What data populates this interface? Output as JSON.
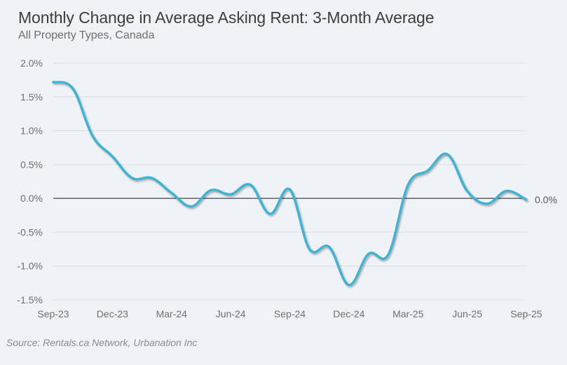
{
  "chart_data": {
    "type": "line",
    "title": "Monthly Change in Average Asking Rent: 3-Month Average",
    "subtitle": "All Property Types, Canada",
    "source": "Source: Rentals.ca Network, Urbanation Inc",
    "xlabel": "",
    "ylabel": "",
    "ylim": [
      -1.5,
      2.0
    ],
    "yticks": [
      2.0,
      1.5,
      1.0,
      0.5,
      0.0,
      -0.5,
      -1.0,
      -1.5
    ],
    "ytick_labels": [
      "2.0%",
      "1.5%",
      "1.0%",
      "0.5%",
      "0.0%",
      "-0.5%",
      "-1.0%",
      "-1.5%"
    ],
    "xtick_labels": [
      "Sep-23",
      "Dec-23",
      "Mar-24",
      "Jun-24",
      "Sep-24",
      "Dec-24",
      "Mar-25",
      "Jun-25",
      "Sep-25"
    ],
    "xtick_every": 3,
    "grid": true,
    "end_label": "0.0%",
    "line_color": "#3fb3d0",
    "series": [
      {
        "name": "Monthly change (3-month average)",
        "x": [
          "Sep-23",
          "Oct-23",
          "Nov-23",
          "Dec-23",
          "Jan-24",
          "Feb-24",
          "Mar-24",
          "Apr-24",
          "May-24",
          "Jun-24",
          "Jul-24",
          "Aug-24",
          "Sep-24",
          "Oct-24",
          "Nov-24",
          "Dec-24",
          "Jan-25",
          "Feb-25",
          "Mar-25",
          "Apr-25",
          "May-25",
          "Jun-25",
          "Jul-25",
          "Aug-25",
          "Sep-25"
        ],
        "values": [
          1.72,
          1.62,
          0.92,
          0.62,
          0.3,
          0.3,
          0.08,
          -0.12,
          0.12,
          0.06,
          0.2,
          -0.23,
          0.13,
          -0.75,
          -0.72,
          -1.28,
          -0.82,
          -0.83,
          0.2,
          0.41,
          0.65,
          0.11,
          -0.08,
          0.11,
          -0.02
        ]
      }
    ]
  }
}
